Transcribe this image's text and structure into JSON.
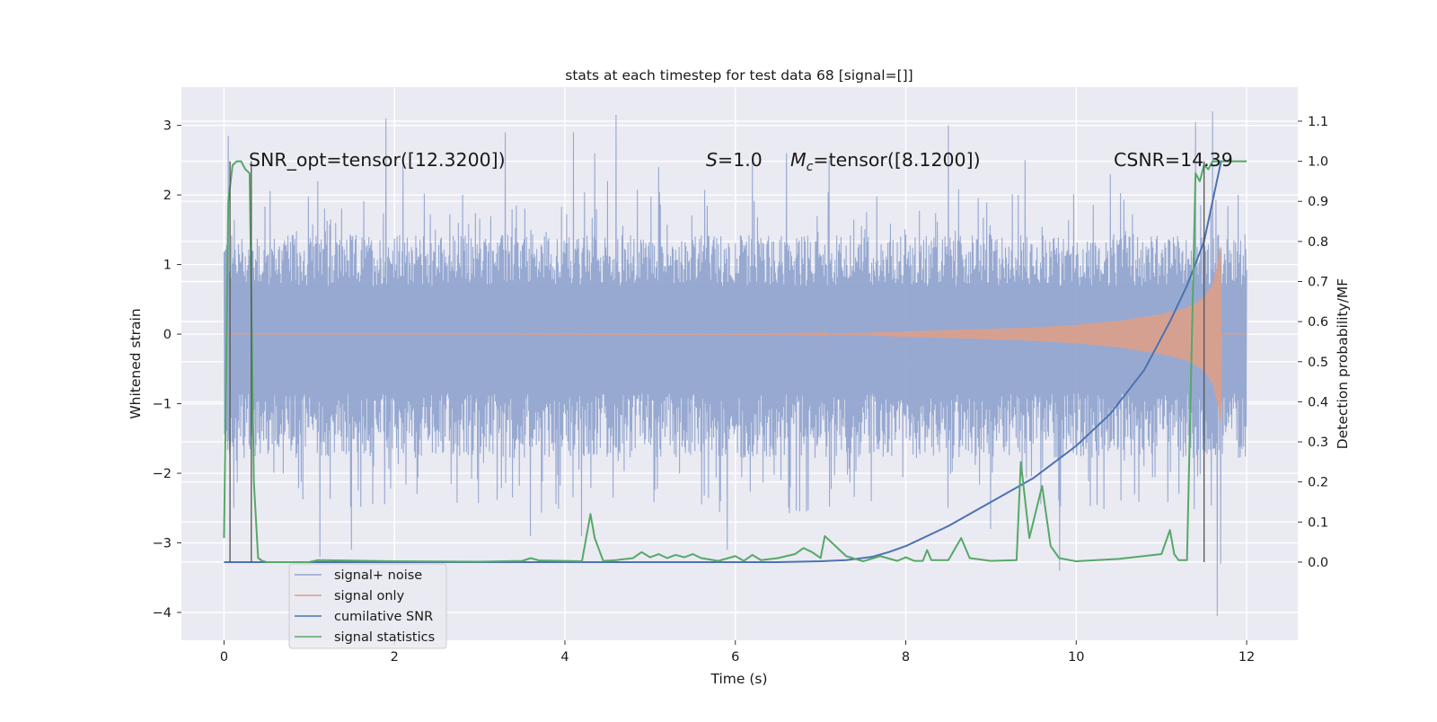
{
  "chart_data": {
    "type": "line",
    "title": "stats at each timestep for test data 68 [signal=[]]",
    "xlabel": "Time (s)",
    "ylabel_left": "Whitened strain",
    "ylabel_right": "Detection probability/MF",
    "xlim": [
      -0.5,
      12.6
    ],
    "ylim_left": [
      -4.4,
      3.55
    ],
    "ylim_right": [
      -0.195,
      1.185
    ],
    "x_ticks": [
      0,
      2,
      4,
      6,
      8,
      10,
      12
    ],
    "y_left_ticks": [
      -4,
      -3,
      -2,
      -1,
      0,
      1,
      2,
      3
    ],
    "y_right_ticks": [
      0.0,
      0.1,
      0.2,
      0.3,
      0.4,
      0.5,
      0.6,
      0.7,
      0.8,
      0.9,
      1.0,
      1.1
    ],
    "grid": true,
    "legend_position": "lower-left",
    "annotations": {
      "snr_opt": "SNR_opt=tensor([12.3200])",
      "s": "=1.0",
      "s_symbol": "S",
      "mc": "=tensor([8.1200])",
      "mc_symbol": "M",
      "mc_subscript": "c",
      "csnr": "CSNR=14.39"
    },
    "vertical_markers_x": [
      0.07,
      0.32,
      11.5
    ],
    "series": [
      {
        "name": "signal+ noise",
        "color": "#92a5cf",
        "axis": "left",
        "envelope": {
          "t": [
            0,
            12
          ],
          "typical_upper": 1.25,
          "typical_lower": -1.55,
          "peaks": [
            [
              0.05,
              2.85
            ],
            [
              0.12,
              -2.5
            ],
            [
              1.1,
              2.2
            ],
            [
              1.12,
              -3.2
            ],
            [
              1.5,
              -3.1
            ],
            [
              1.9,
              3.1
            ],
            [
              2.1,
              2.5
            ],
            [
              3.3,
              2.9
            ],
            [
              3.6,
              -2.9
            ],
            [
              4.1,
              2.9
            ],
            [
              4.2,
              -2.9
            ],
            [
              4.35,
              2.6
            ],
            [
              4.5,
              2.2
            ],
            [
              4.6,
              3.15
            ],
            [
              5.1,
              2.4
            ],
            [
              5.9,
              -3.1
            ],
            [
              6.2,
              2.5
            ],
            [
              6.6,
              2.6
            ],
            [
              7.1,
              2.5
            ],
            [
              7.6,
              -2.4
            ],
            [
              8.5,
              3.0
            ],
            [
              9.0,
              -2.8
            ],
            [
              9.4,
              2.5
            ],
            [
              9.8,
              -3.4
            ],
            [
              10.4,
              2.3
            ],
            [
              11.4,
              3.05
            ],
            [
              11.6,
              3.2
            ],
            [
              11.65,
              -4.05
            ],
            [
              11.7,
              -3.3
            ],
            [
              11.9,
              2.0
            ]
          ]
        }
      },
      {
        "name": "signal only",
        "color": "#dd9e89",
        "axis": "left",
        "envelope": {
          "t": [
            6.5,
            7.0,
            7.5,
            8.0,
            8.5,
            9.0,
            9.5,
            10.0,
            10.5,
            11.0,
            11.3,
            11.5,
            11.6,
            11.65,
            11.7
          ],
          "amplitude": [
            0.005,
            0.01,
            0.02,
            0.04,
            0.06,
            0.08,
            0.1,
            0.14,
            0.2,
            0.3,
            0.4,
            0.55,
            0.75,
            1.0,
            1.35
          ]
        }
      },
      {
        "name": "cumilative SNR",
        "color": "#4c72b0",
        "axis": "right",
        "x": [
          0,
          6.5,
          7.0,
          7.3,
          7.6,
          7.8,
          8.0,
          8.5,
          9.0,
          9.5,
          10.0,
          10.4,
          10.8,
          11.1,
          11.3,
          11.5,
          11.7
        ],
        "y": [
          0,
          0,
          0.002,
          0.005,
          0.013,
          0.025,
          0.04,
          0.09,
          0.15,
          0.21,
          0.29,
          0.37,
          0.48,
          0.6,
          0.69,
          0.8,
          1.0
        ]
      },
      {
        "name": "signal statistics",
        "color": "#55a868",
        "axis": "right",
        "x": [
          0,
          0.05,
          0.1,
          0.15,
          0.2,
          0.25,
          0.3,
          0.35,
          0.4,
          0.45,
          0.5,
          1.0,
          1.1,
          2.0,
          3.0,
          3.5,
          3.6,
          3.7,
          4.0,
          4.2,
          4.3,
          4.35,
          4.45,
          4.6,
          4.8,
          4.9,
          5.0,
          5.1,
          5.2,
          5.3,
          5.4,
          5.5,
          5.6,
          5.8,
          6.0,
          6.1,
          6.2,
          6.3,
          6.5,
          6.7,
          6.8,
          6.9,
          7.0,
          7.05,
          7.15,
          7.3,
          7.5,
          7.7,
          7.9,
          8.0,
          8.1,
          8.2,
          8.25,
          8.3,
          8.5,
          8.65,
          8.75,
          9.0,
          9.3,
          9.35,
          9.45,
          9.6,
          9.7,
          9.8,
          10.0,
          10.5,
          11.0,
          11.1,
          11.15,
          11.2,
          11.3,
          11.4,
          11.45,
          11.5,
          11.55,
          11.6,
          11.65,
          11.7,
          12.0
        ],
        "y": [
          0.06,
          0.9,
          0.99,
          1.0,
          1.0,
          0.98,
          0.97,
          0.2,
          0.01,
          0.003,
          0.0,
          0.0,
          0.005,
          0.002,
          0.001,
          0.003,
          0.01,
          0.004,
          0.003,
          0.002,
          0.12,
          0.06,
          0.003,
          0.005,
          0.01,
          0.025,
          0.012,
          0.02,
          0.01,
          0.018,
          0.012,
          0.02,
          0.01,
          0.003,
          0.015,
          0.003,
          0.018,
          0.005,
          0.01,
          0.02,
          0.035,
          0.025,
          0.01,
          0.065,
          0.045,
          0.015,
          0.002,
          0.015,
          0.003,
          0.012,
          0.003,
          0.003,
          0.03,
          0.005,
          0.005,
          0.06,
          0.01,
          0.003,
          0.005,
          0.25,
          0.06,
          0.19,
          0.04,
          0.01,
          0.002,
          0.008,
          0.02,
          0.08,
          0.02,
          0.005,
          0.005,
          0.97,
          0.95,
          0.99,
          0.98,
          1.0,
          1.0,
          1.0,
          1.0
        ]
      }
    ]
  }
}
